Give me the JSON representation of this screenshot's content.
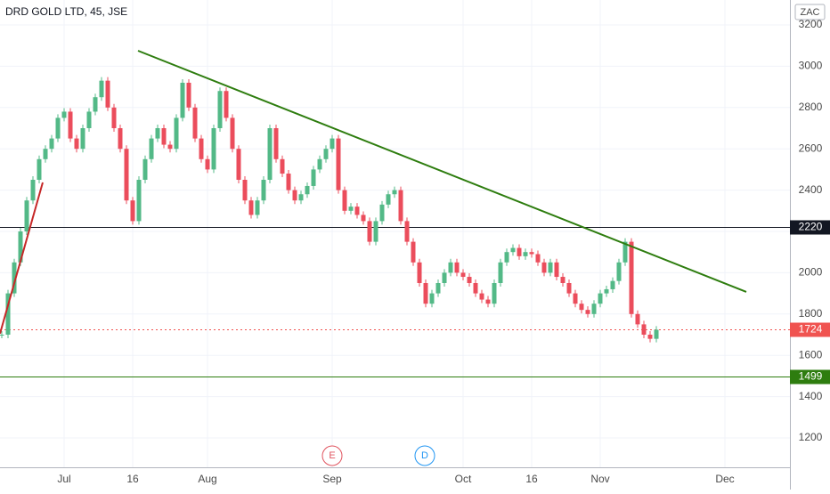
{
  "chart_data": {
    "type": "candlestick",
    "title": "DRD GOLD LTD, 45, JSE",
    "currency": "ZAC",
    "categories": [
      null,
      null,
      null,
      null,
      null,
      null,
      null,
      null,
      null,
      null,
      "Jul",
      null,
      null,
      null,
      null,
      null,
      null,
      null,
      null,
      null,
      null,
      "16",
      null,
      null,
      null,
      null,
      null,
      null,
      null,
      null,
      null,
      null,
      null,
      "Aug",
      null,
      null,
      null,
      null,
      null,
      null,
      null,
      null,
      null,
      null,
      null,
      null,
      null,
      null,
      null,
      null,
      null,
      null,
      null,
      "Sep",
      null,
      null,
      null,
      null,
      null,
      null,
      null,
      null,
      null,
      null,
      null,
      null,
      null,
      null,
      null,
      null,
      null,
      null,
      null,
      null,
      "Oct",
      null,
      null,
      null,
      null,
      null,
      null,
      null,
      null,
      null,
      null,
      "16",
      null,
      null,
      null,
      null,
      null,
      null,
      null,
      null,
      null,
      null,
      "Nov",
      null,
      null,
      null,
      null,
      null,
      null,
      null,
      null,
      null,
      null,
      null,
      null,
      null,
      null,
      null,
      null,
      null,
      null,
      null,
      "Dec"
    ],
    "close": [
      1700,
      1900,
      2050,
      2200,
      2350,
      2450,
      2550,
      2600,
      2650,
      2750,
      2780,
      2650,
      2600,
      2700,
      2780,
      2850,
      2930,
      2800,
      2700,
      2600,
      2350,
      2250,
      2450,
      2550,
      2650,
      2700,
      2620,
      2600,
      2750,
      2920,
      2800,
      2650,
      2550,
      2500,
      2700,
      2880,
      2750,
      2600,
      2450,
      2350,
      2280,
      2350,
      2450,
      2700,
      2550,
      2480,
      2400,
      2350,
      2380,
      2420,
      2500,
      2550,
      2600,
      2650,
      2400,
      2300,
      2320,
      2280,
      2250,
      2150,
      2250,
      2330,
      2380,
      2400,
      2250,
      2150,
      2050,
      1950,
      1850,
      1900,
      1950,
      2000,
      2050,
      2000,
      1980,
      1950,
      1900,
      1870,
      1850,
      1950,
      2050,
      2100,
      2120,
      2080,
      2100,
      2090,
      2050,
      2000,
      2050,
      1980,
      1950,
      1900,
      1850,
      1820,
      1800,
      1850,
      1900,
      1920,
      1960,
      2050,
      2150,
      1800,
      1750,
      1700,
      1680,
      1724,
      null,
      null,
      null,
      null,
      null,
      null,
      null,
      null,
      null,
      null,
      null
    ],
    "up_color": "#53b987",
    "down_color": "#eb4d5c",
    "ylim": [
      1000,
      3300
    ],
    "yticks": [
      1200,
      1400,
      1600,
      1800,
      2000,
      2200,
      2400,
      2600,
      2800,
      3000,
      3200
    ],
    "grid": true,
    "levels": [
      {
        "value": 2220,
        "color": "#131722"
      },
      {
        "value": 1724,
        "color": "#f05350"
      },
      {
        "value": 1499,
        "color": "#2e7d0f"
      }
    ],
    "trend_lines": [
      {
        "color": "#2e7d0f",
        "values": [
          3075,
          1907
        ]
      },
      {
        "color": "#c62828",
        "values": [
          1705,
          2437
        ]
      }
    ],
    "events": [
      {
        "label": "E",
        "color": "#e0545f"
      },
      {
        "label": "D",
        "color": "#2196f3"
      }
    ]
  }
}
